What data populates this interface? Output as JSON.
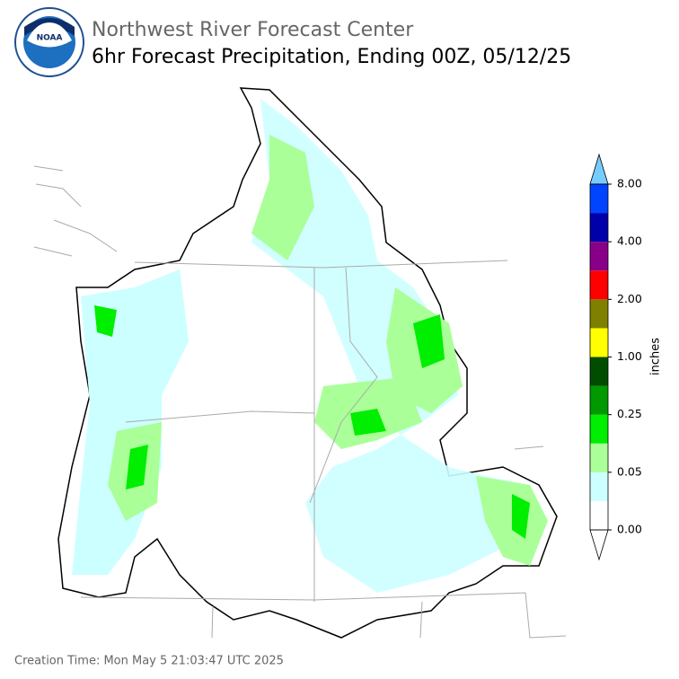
{
  "header": {
    "title": "Northwest River Forecast Center",
    "subtitle": "6hr Forecast Precipitation, Ending 00Z, 05/12/25"
  },
  "colorbar": {
    "label": "inches",
    "colors": [
      "#ffffff",
      "#ccffff",
      "#aaff99",
      "#00ee00",
      "#009900",
      "#004d00",
      "#ffff00",
      "#808000",
      "#ff0000",
      "#880088",
      "#0000aa",
      "#0044ff"
    ],
    "over_color": "#77ccff",
    "under_color": "#ffffff",
    "ticks": [
      {
        "value": 0,
        "label": "0.00"
      },
      {
        "value": 0.05,
        "label": "0.05"
      },
      {
        "value": 0.25,
        "label": "0.25"
      },
      {
        "value": 1,
        "label": "1.00"
      },
      {
        "value": 2,
        "label": "2.00"
      },
      {
        "value": 4,
        "label": "4.00"
      },
      {
        "value": 8,
        "label": "8.00"
      }
    ]
  },
  "footer": {
    "creation_time": "Creation Time: Mon May 5 21:03:47 UTC 2025"
  }
}
